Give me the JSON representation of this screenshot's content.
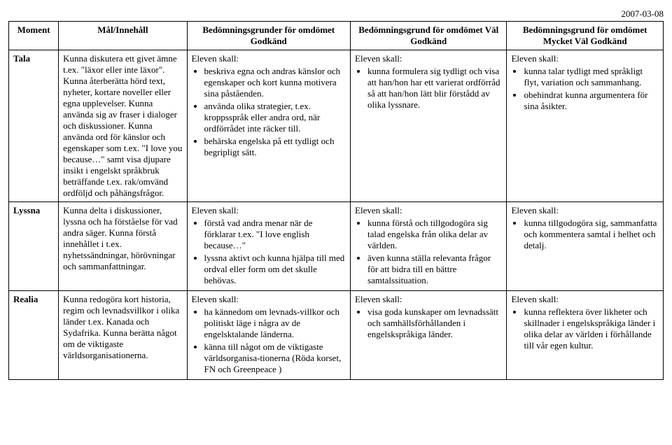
{
  "date": "2007-03-08",
  "headers": {
    "moment": "Moment",
    "mal": "Mål/Innehåll",
    "g": "Bedömningsgrunder för omdömet Godkänd",
    "vg": "Bedömningsgrund för omdömet Väl Godkänd",
    "mvg": "Bedömningsgrund för omdömet Mycket Väl Godkänd"
  },
  "leads": {
    "eleven": "Eleven skall:"
  },
  "rows": [
    {
      "moment": "Tala",
      "mal": "Kunna diskutera ett givet ämne t.ex. \"läxor eller inte läxor\". Kunna återberätta hörd text, nyheter, kortare noveller eller egna upplevelser. Kunna använda sig av fraser i dialoger och diskussioner. Kunna använda ord för känslor och egenskaper som t.ex. \"I love you because…\" samt visa djupare insikt i engelskt språkbruk beträffande t.ex. rak/omvänd ordföljd och påhängsfrågor.",
      "g": [
        "beskriva egna och andras känslor och egenskaper och kort kunna motivera sina påståenden.",
        "använda olika strategier, t.ex. kroppsspråk eller andra ord, när ordförrådet inte räcker till.",
        "behärska engelska på ett tydligt och begripligt sätt."
      ],
      "vg": [
        "kunna formulera sig tydligt och visa att han/hon har ett varierat ordförråd så att han/hon lätt blir förstådd av olika lyssnare."
      ],
      "mvg": [
        "kunna talar tydligt med språkligt flyt, variation och sammanhang.",
        "obehindrat kunna argumentera för sina åsikter."
      ]
    },
    {
      "moment": "Lyssna",
      "mal": "Kunna delta i diskussioner, lyssna och ha förståelse för vad andra säger. Kunna förstå innehållet i t.ex. nyhetssändningar, hörövningar och sammanfattningar.",
      "g": [
        "förstå vad andra menar när de förklarar t.ex. \"I love english because…\"",
        "lyssna aktivt och kunna hjälpa till med ordval eller form om det skulle behövas."
      ],
      "vg": [
        "kunna förstå och tillgodogöra sig talad engelska från olika delar av världen.",
        "även kunna ställa relevanta frågor för att bidra till en bättre samtalssituation."
      ],
      "mvg": [
        "kunna tillgodogöra sig, sammanfatta och kommentera samtal i helhet och detalj."
      ]
    },
    {
      "moment": "Realia",
      "mal": "Kunna redogöra kort historia, regim och levnadsvillkor i olika länder t.ex. Kanada och Sydafrika. Kunna berätta något om de viktigaste världsorganisationerna.",
      "g": [
        "ha kännedom om levnads-villkor och politiskt läge i några av de engelsktalande länderna.",
        "känna till något om de viktigaste världsorganisa-tionerna (Röda korset, FN och Greenpeace )"
      ],
      "vg": [
        "visa goda kunskaper om levnadssätt och samhällsförhållanden i engelskspråkiga länder."
      ],
      "mvg": [
        "kunna reflektera över likheter och skillnader i engelskspråkiga länder i olika delar av världen i förhållande till vår egen kultur."
      ]
    }
  ]
}
